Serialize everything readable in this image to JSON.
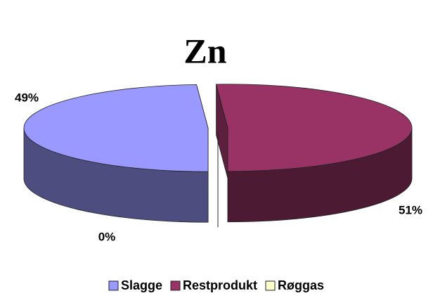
{
  "chart_data": {
    "type": "pie",
    "title": "Zn",
    "categories": [
      "Slagge",
      "Restprodukt",
      "Røggas"
    ],
    "values": [
      49,
      51,
      0
    ],
    "value_labels": [
      "49%",
      "51%",
      "0%"
    ],
    "colors": [
      "#9999ff",
      "#993366",
      "#ffffcc"
    ],
    "legend": "bottom"
  }
}
